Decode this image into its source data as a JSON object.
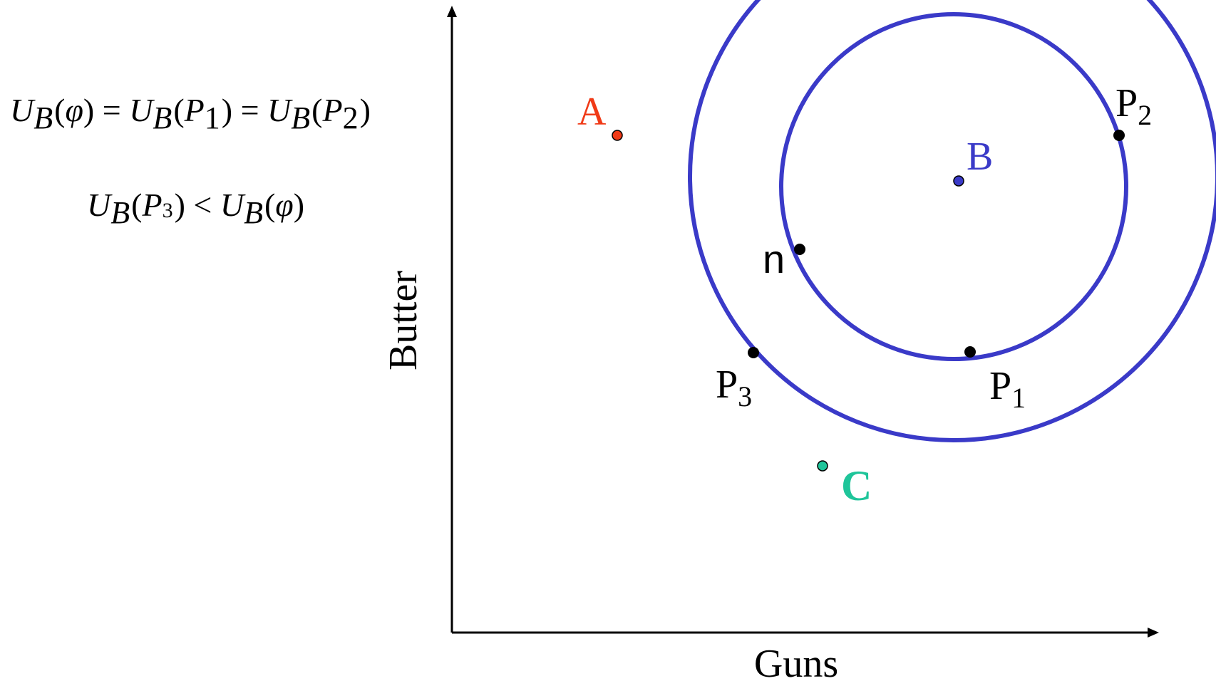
{
  "diagram": {
    "y_axis_label": "Butter",
    "x_axis_label": "Guns",
    "ideal_points": [
      {
        "label": "A",
        "color": "#f03a17"
      },
      {
        "label": "B",
        "color": "#3a3ac8"
      },
      {
        "label": "C",
        "color": "#1fc59a"
      }
    ],
    "proposal_labels": {
      "p1": "P",
      "p1_sub": "1",
      "p2": "P",
      "p2_sub": "2",
      "p3": "P",
      "p3_sub": "3"
    },
    "status_quo_label": "n",
    "circle_color": "#3a3ac8"
  },
  "equations": {
    "line1": {
      "U": "U",
      "B": "B",
      "phi": "φ",
      "P": "P",
      "one": "1",
      "two": "2",
      "eq": "=",
      "lp": "(",
      "rp": ")"
    },
    "line2": {
      "U": "U",
      "B": "B",
      "phi": "φ",
      "P": "P",
      "three": "3",
      "lt": "<",
      "lp": "(",
      "rp": ")"
    }
  }
}
